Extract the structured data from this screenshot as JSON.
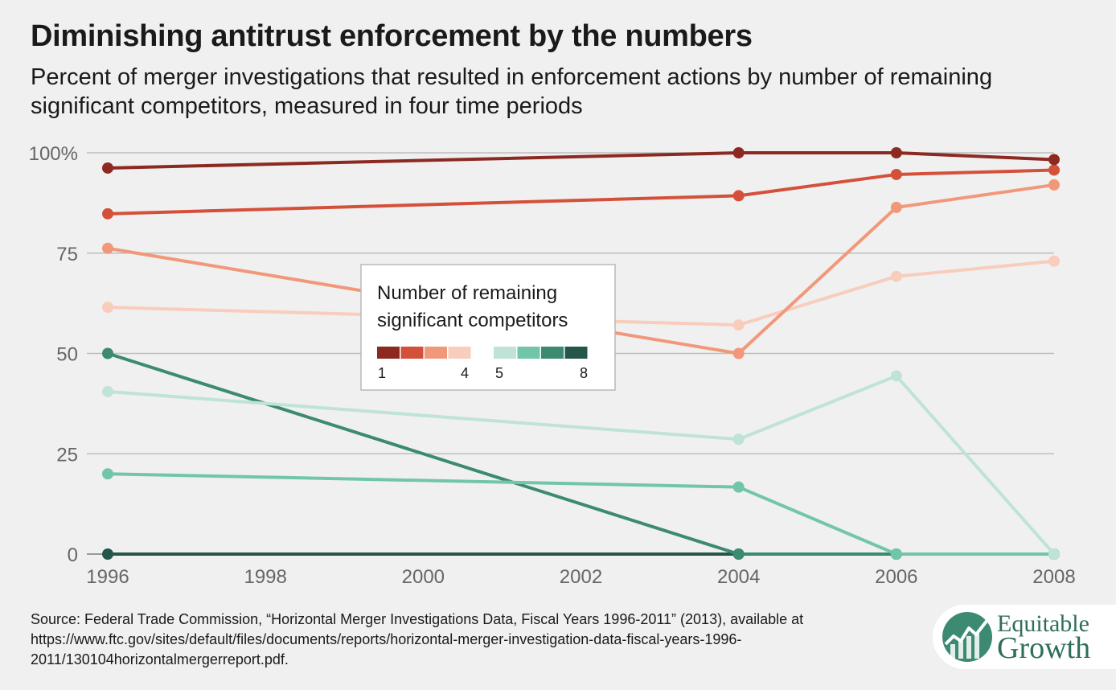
{
  "title": "Diminishing antitrust enforcement by the numbers",
  "subtitle": "Percent of merger investigations that resulted in enforcement actions by number of remaining significant competitors, measured in four time periods",
  "source": "Source: Federal Trade Commission, “Horizontal Merger Investigations Data, Fiscal Years 1996-2011” (2013), available at https://www.ftc.gov/sites/default/files/documents/reports/horizontal-merger-investigation-data-fiscal-years-1996-2011/130104horizontalmergerreport.pdf.",
  "logo": {
    "line1": "Equitable",
    "line2": "Growth"
  },
  "legend": {
    "title_line1": "Number of remaining",
    "title_line2": "significant competitors",
    "label_1": "1",
    "label_4": "4",
    "label_5": "5",
    "label_8": "8"
  },
  "chart_data": {
    "type": "line",
    "title": "Diminishing antitrust enforcement by the numbers",
    "x": [
      1996,
      2004,
      2006,
      2008
    ],
    "xticks": [
      1996,
      1998,
      2000,
      2002,
      2004,
      2006,
      2008
    ],
    "xlim": [
      1996,
      2008
    ],
    "ylim": [
      0,
      100
    ],
    "yticks": [
      0,
      25,
      50,
      75,
      100
    ],
    "ytick_labels": [
      "0",
      "25",
      "50",
      "75",
      "100%"
    ],
    "grid": true,
    "legend_position": "center",
    "series": [
      {
        "name": "8",
        "color": "#24574a",
        "values": [
          0,
          0,
          0,
          0
        ]
      },
      {
        "name": "7",
        "color": "#3c8a72",
        "values": [
          50,
          0,
          0,
          0
        ]
      },
      {
        "name": "6",
        "color": "#72c6a8",
        "values": [
          20,
          16.7,
          0,
          0
        ]
      },
      {
        "name": "5",
        "color": "#bfe3d5",
        "values": [
          40.5,
          28.6,
          44.4,
          0
        ]
      },
      {
        "name": "4",
        "color": "#f8cdbc",
        "values": [
          61.5,
          57.1,
          69.2,
          73
        ]
      },
      {
        "name": "3",
        "color": "#f2987a",
        "values": [
          76.2,
          50,
          86.4,
          92
        ]
      },
      {
        "name": "2",
        "color": "#d4503a",
        "values": [
          84.8,
          89.3,
          94.6,
          95.7
        ]
      },
      {
        "name": "1",
        "color": "#8c2a22",
        "values": [
          96.2,
          100,
          100,
          98.3
        ]
      }
    ]
  }
}
